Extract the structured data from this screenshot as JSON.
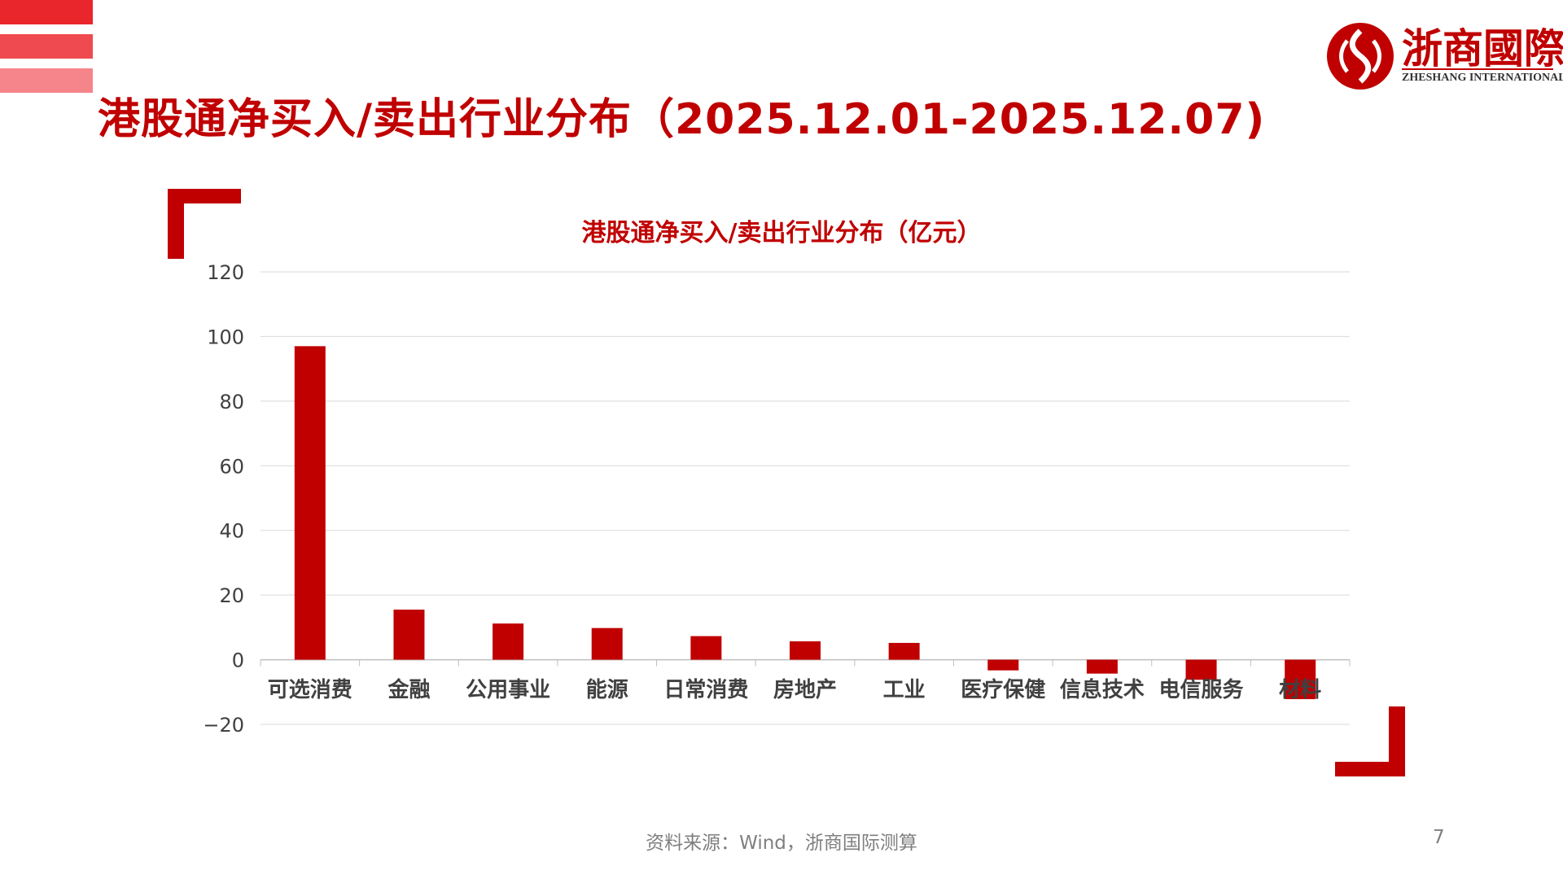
{
  "slide": {
    "title": "港股通净买入/卖出行业分布（2025.12.01-2025.12.07)",
    "source": "资料来源：Wind，浙商国际测算",
    "page_number": "7"
  },
  "logo": {
    "name_cn": "浙商國際",
    "name_en": "ZHESHANG INTERNATIONAL"
  },
  "colors": {
    "accent": "#c00000",
    "stripe_1": "#e8262c",
    "stripe_2": "#ef4a4f",
    "stripe_3": "#f5858a"
  },
  "chart_data": {
    "type": "bar",
    "title": "港股通净买入/卖出行业分布（亿元）",
    "categories": [
      "可选消费",
      "金融",
      "公用事业",
      "能源",
      "日常消费",
      "房地产",
      "工业",
      "医疗保健",
      "信息技术",
      "电信服务",
      "材料"
    ],
    "values": [
      97,
      15.5,
      11.2,
      9.8,
      7.3,
      5.7,
      5.2,
      -3.3,
      -4.3,
      -6.2,
      -12.2
    ],
    "ylim": [
      -20,
      120
    ],
    "yticks": [
      120,
      100,
      80,
      60,
      40,
      20,
      0,
      -20
    ],
    "grid": true,
    "bar_color": "#c00000"
  }
}
